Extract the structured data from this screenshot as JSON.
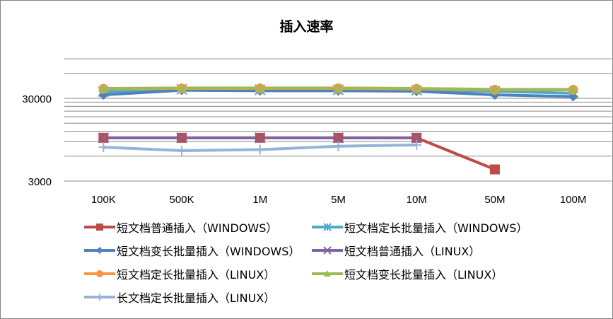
{
  "chart_data": {
    "type": "line",
    "title": "插入速率",
    "xlabel": "",
    "ylabel": "",
    "y_scale": "log",
    "yticks": [
      3000,
      30000
    ],
    "ytick_labels": [
      "3000",
      "30000"
    ],
    "ylim": [
      3000,
      300000
    ],
    "grid": true,
    "legend_position": "bottom",
    "categories": [
      "100K",
      "500K",
      "1M",
      "5M",
      "10M",
      "50M",
      "100M"
    ],
    "series": [
      {
        "name": "短文档普通插入（WINDOWS）",
        "color": "#be4b48",
        "marker": "square",
        "values": [
          10000,
          10000,
          10000,
          10000,
          10000,
          4150,
          null
        ]
      },
      {
        "name": "短文档定长批量插入（WINDOWS）",
        "color": "#4bacc6",
        "marker": "star",
        "values": [
          36000,
          38500,
          38000,
          38000,
          37500,
          36500,
          34500
        ]
      },
      {
        "name": "短文档变长批量插入（WINDOWS）",
        "color": "#4f81bd",
        "marker": "diamond",
        "values": [
          33000,
          37500,
          37000,
          37000,
          36500,
          33000,
          31500
        ]
      },
      {
        "name": "短文档普通插入（LINUX）",
        "color": "#8064a2",
        "marker": "x",
        "values": [
          10000,
          10000,
          10000,
          10000,
          10000,
          null,
          null
        ]
      },
      {
        "name": "短文档定长批量插入（LINUX）",
        "color": "#f79646",
        "marker": "circle",
        "values": [
          39000,
          39500,
          39500,
          39500,
          39000,
          38000,
          38000
        ]
      },
      {
        "name": "短文档变长批量插入（LINUX）",
        "color": "#9bbb59",
        "marker": "triangle",
        "values": [
          39500,
          40000,
          40000,
          40000,
          39500,
          38500,
          38500
        ]
      },
      {
        "name": "长文档定长批量插入（LINUX）",
        "color": "#95b3d7",
        "marker": "plus",
        "values": [
          7700,
          7000,
          7200,
          7900,
          8200,
          null,
          null
        ]
      }
    ]
  }
}
